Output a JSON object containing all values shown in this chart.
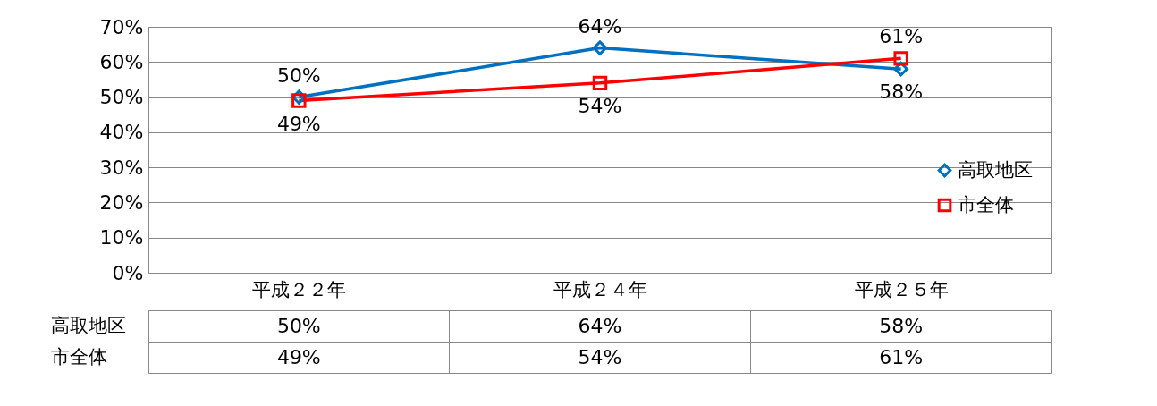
{
  "chart_data": {
    "type": "line",
    "categories": [
      "平成２２年",
      "平成２４年",
      "平成２５年"
    ],
    "series": [
      {
        "name": "高取地区",
        "color": "#0070c0",
        "marker": "diamond",
        "values": [
          50,
          64,
          58
        ],
        "value_labels": [
          "50%",
          "64%",
          "58%"
        ]
      },
      {
        "name": "市全体",
        "color": "#ff0000",
        "marker": "square",
        "values": [
          49,
          54,
          61
        ],
        "value_labels": [
          "49%",
          "54%",
          "61%"
        ]
      }
    ],
    "ylim": [
      0,
      70
    ],
    "yticks": [
      {
        "value": 0,
        "label": "0%"
      },
      {
        "value": 10,
        "label": "10%"
      },
      {
        "value": 20,
        "label": "20%"
      },
      {
        "value": 30,
        "label": "30%"
      },
      {
        "value": 40,
        "label": "40%"
      },
      {
        "value": 50,
        "label": "50%"
      },
      {
        "value": 60,
        "label": "60%"
      },
      {
        "value": 70,
        "label": "70%"
      }
    ],
    "data_labels": true,
    "grid": "y",
    "legend": "right",
    "line_style": "solid"
  }
}
